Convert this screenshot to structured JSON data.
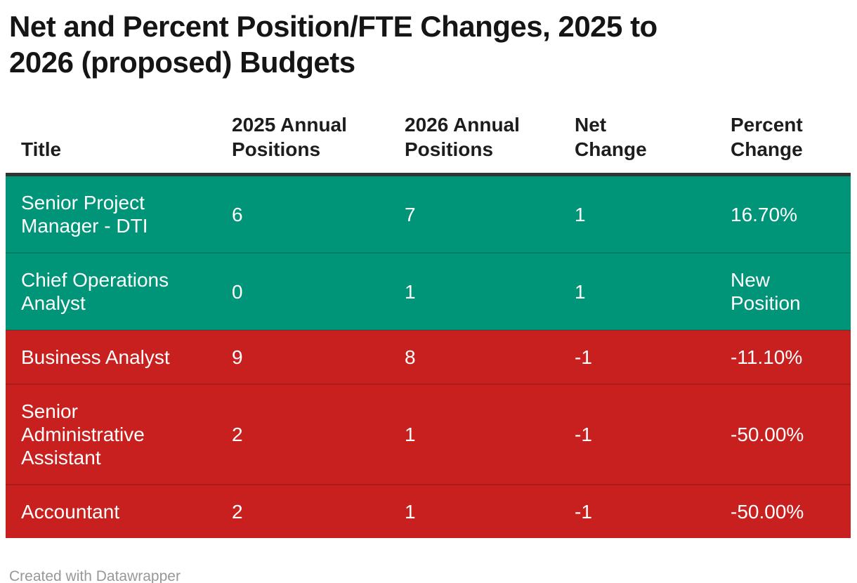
{
  "chart_data": {
    "type": "table",
    "title": "Net and Percent Position/FTE Changes, 2025 to 2026 (proposed) Budgets",
    "columns": [
      "Title",
      "2025 Annual Positions",
      "2026 Annual Positions",
      "Net Change",
      "Percent Change"
    ],
    "rows": [
      {
        "cells": [
          "Senior Project Manager - DTI",
          "6",
          "7",
          "1",
          "16.70%"
        ],
        "trend": "positive"
      },
      {
        "cells": [
          "Chief Operations Analyst",
          "0",
          "1",
          "1",
          "New Position"
        ],
        "trend": "positive"
      },
      {
        "cells": [
          "Business Analyst",
          "9",
          "8",
          "-1",
          "-11.10%"
        ],
        "trend": "negative"
      },
      {
        "cells": [
          "Senior Administrative Assistant",
          "2",
          "1",
          "-1",
          "-50.00%"
        ],
        "trend": "negative"
      },
      {
        "cells": [
          "Accountant",
          "2",
          "1",
          "-1",
          "-50.00%"
        ],
        "trend": "negative"
      }
    ],
    "layout_hints": {
      "row_color_meaning": "green = position added, red = position cut",
      "grid": "horizontal separators only",
      "header_rule": "thick dark line under column headers"
    }
  },
  "colors": {
    "positive_row": "#009478",
    "negative_row": "#c8201e",
    "row_text": "#ffffff",
    "title_text": "#151515",
    "header_text": "#1d1d1d",
    "header_rule": "#333333",
    "credit_text": "#989898",
    "background": "#ffffff"
  },
  "footer": {
    "credit": "Created with Datawrapper"
  }
}
